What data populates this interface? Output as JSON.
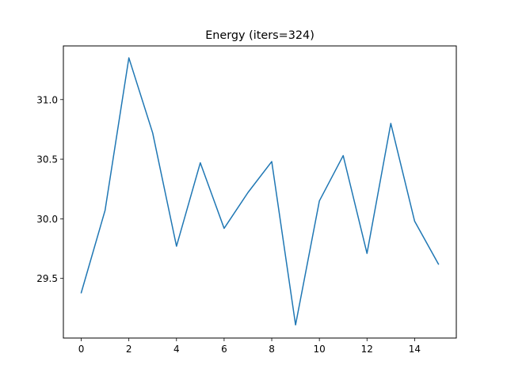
{
  "chart_data": {
    "type": "line",
    "title": "Energy (iters=324)",
    "xlabel": "",
    "ylabel": "",
    "x": [
      0,
      1,
      2,
      3,
      4,
      5,
      6,
      7,
      8,
      9,
      10,
      11,
      12,
      13,
      14,
      15
    ],
    "series": [
      {
        "values": [
          29.38,
          30.07,
          31.35,
          30.72,
          29.77,
          30.47,
          29.92,
          30.22,
          30.48,
          29.11,
          30.15,
          30.53,
          29.71,
          30.8,
          29.98,
          29.62
        ],
        "color": "#1f77b4"
      }
    ],
    "xlim": [
      -0.75,
      15.75
    ],
    "ylim": [
      29.0,
      31.45
    ],
    "xticks": [
      0,
      2,
      4,
      6,
      8,
      10,
      12,
      14
    ],
    "yticks": [
      29.5,
      30.0,
      30.5,
      31.0
    ],
    "xtick_labels": [
      "0",
      "2",
      "4",
      "6",
      "8",
      "10",
      "12",
      "14"
    ],
    "ytick_labels": [
      "29.5",
      "30.0",
      "30.5",
      "31.0"
    ],
    "grid": false,
    "legend": "none"
  }
}
